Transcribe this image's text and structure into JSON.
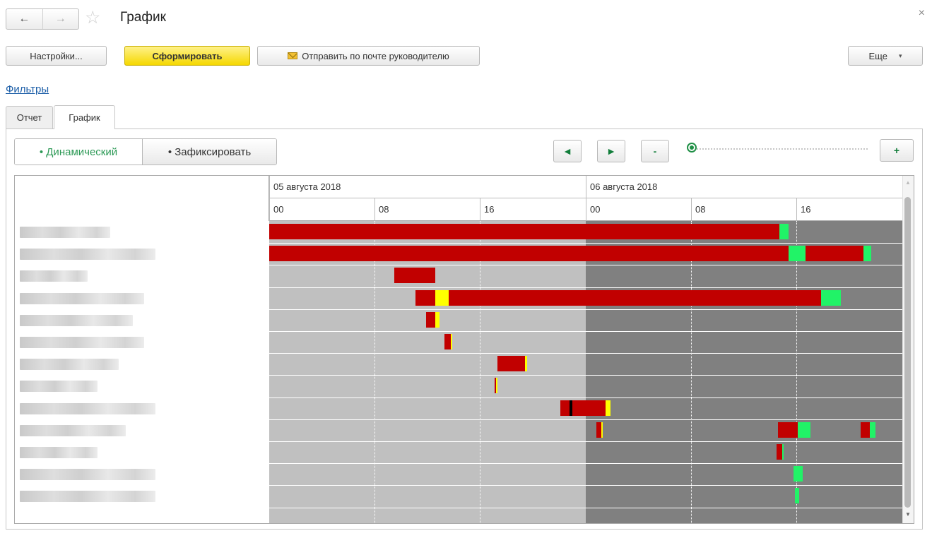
{
  "window": {
    "title": "График",
    "back_icon": "←",
    "forward_icon": "→",
    "star_icon": "☆",
    "close_icon": "×"
  },
  "toolbar": {
    "settings_label": "Настройки...",
    "generate_label": "Сформировать",
    "mail_label": "Отправить по почте руководителю",
    "more_label": "Еще",
    "more_arrow": "▾"
  },
  "filters_link": "Фильтры",
  "tabs": [
    {
      "label": "Отчет",
      "active": false
    },
    {
      "label": "График",
      "active": true
    }
  ],
  "mode": {
    "dynamic_label": "• Динамический",
    "fix_label": "• Зафиксировать"
  },
  "nav_controls": {
    "prev": "◄",
    "next": "►",
    "zoom_out": "-",
    "zoom_in": "+",
    "zoom_level": 0
  },
  "gantt": {
    "dates": [
      "05 августа 2018",
      "06 августа 2018"
    ],
    "hours": [
      "00",
      "08",
      "16",
      "00",
      "08",
      "16"
    ],
    "rows": [
      {
        "name": "",
        "segments": [
          {
            "start": 0,
            "end": 38.7,
            "color": "red"
          },
          {
            "start": 38.7,
            "end": 39.4,
            "color": "green"
          }
        ]
      },
      {
        "name": "",
        "segments": [
          {
            "start": 0,
            "end": 39.4,
            "color": "red"
          },
          {
            "start": 39.4,
            "end": 40.7,
            "color": "green"
          },
          {
            "start": 40.7,
            "end": 45.1,
            "color": "red"
          },
          {
            "start": 45.1,
            "end": 45.7,
            "color": "green"
          }
        ]
      },
      {
        "name": "",
        "segments": [
          {
            "start": 9.5,
            "end": 12.4,
            "color": "red"
          },
          {
            "start": 12.4,
            "end": 12.6,
            "color": "red"
          }
        ]
      },
      {
        "name": "",
        "segments": [
          {
            "start": 11.1,
            "end": 12.6,
            "color": "red"
          },
          {
            "start": 12.6,
            "end": 13.6,
            "color": "yellow"
          },
          {
            "start": 13.6,
            "end": 41.9,
            "color": "red"
          },
          {
            "start": 41.9,
            "end": 43.4,
            "color": "green"
          }
        ]
      },
      {
        "name": "",
        "segments": [
          {
            "start": 11.9,
            "end": 12.6,
            "color": "red"
          },
          {
            "start": 12.6,
            "end": 12.9,
            "color": "yellow"
          }
        ]
      },
      {
        "name": "",
        "segments": [
          {
            "start": 13.3,
            "end": 13.8,
            "color": "red"
          },
          {
            "start": 13.8,
            "end": 13.9,
            "color": "yellow"
          }
        ]
      },
      {
        "name": "",
        "segments": [
          {
            "start": 17.3,
            "end": 19.4,
            "color": "red"
          },
          {
            "start": 19.4,
            "end": 19.6,
            "color": "yellow"
          }
        ]
      },
      {
        "name": "",
        "segments": [
          {
            "start": 17.1,
            "end": 17.2,
            "color": "red"
          },
          {
            "start": 17.2,
            "end": 17.3,
            "color": "yellow"
          }
        ]
      },
      {
        "name": "",
        "segments": [
          {
            "start": 22.1,
            "end": 22.8,
            "color": "red"
          },
          {
            "start": 22.8,
            "end": 23.0,
            "color": "black"
          },
          {
            "start": 23.0,
            "end": 25.5,
            "color": "red"
          },
          {
            "start": 25.5,
            "end": 25.9,
            "color": "yellow"
          }
        ]
      },
      {
        "name": "",
        "segments": [
          {
            "start": 24.8,
            "end": 25.2,
            "color": "red"
          },
          {
            "start": 25.2,
            "end": 25.3,
            "color": "yellow"
          },
          {
            "start": 38.6,
            "end": 40.1,
            "color": "red"
          },
          {
            "start": 40.1,
            "end": 41.1,
            "color": "green"
          },
          {
            "start": 44.9,
            "end": 45.6,
            "color": "red"
          },
          {
            "start": 45.6,
            "end": 46.0,
            "color": "green"
          }
        ]
      },
      {
        "name": "",
        "segments": [
          {
            "start": 38.5,
            "end": 38.9,
            "color": "red"
          },
          {
            "start": 38.9,
            "end": 39.0,
            "color": "green"
          }
        ]
      },
      {
        "name": "",
        "segments": [
          {
            "start": 39.8,
            "end": 40.5,
            "color": "green"
          }
        ]
      },
      {
        "name": "",
        "segments": [
          {
            "start": 39.9,
            "end": 40.2,
            "color": "green"
          }
        ]
      }
    ]
  }
}
